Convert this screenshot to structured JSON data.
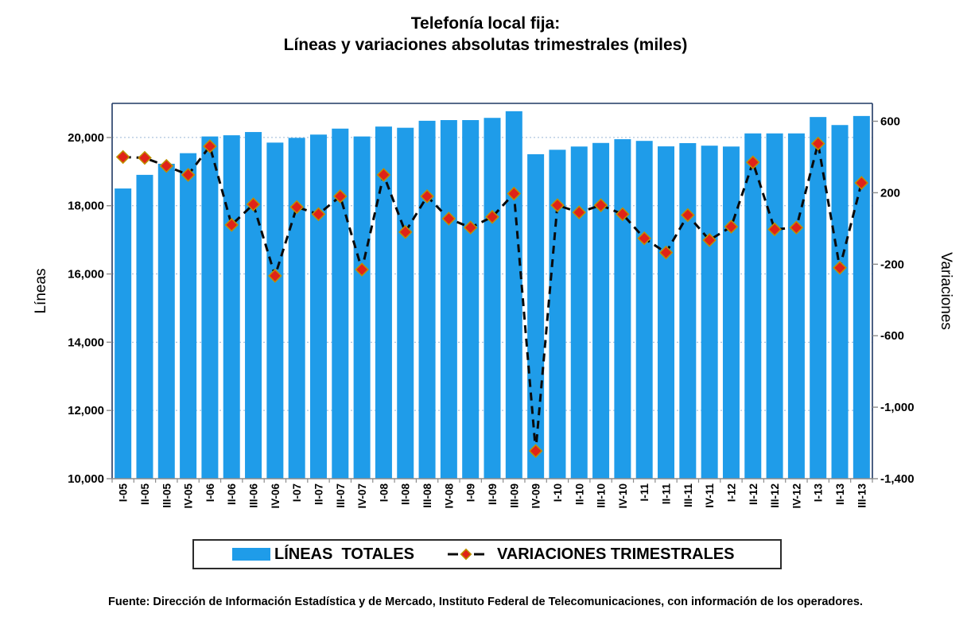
{
  "title": {
    "line1": "Telefonía local fija:",
    "line2": "Líneas y variaciones absolutas trimestrales (miles)"
  },
  "legend": {
    "series1_label": "LÍNEAS  TOTALES",
    "series2_label": "VARIACIONES TRIMESTRALES"
  },
  "source": "Fuente: Dirección de Información Estadística y de Mercado, Instituto Federal de Telecomunicaciones, con información de los operadores.",
  "colors": {
    "bar_blue": "#1F9CE9",
    "diamond_red": "#E02318",
    "diamond_outline_gold": "#BF9000",
    "dash_line_black": "#0A0A0A",
    "gridline_blue": "#9AB7D8",
    "plot_border_navy": "#1F3864",
    "axis_gray": "#8C8C8C",
    "text_black": "#000000"
  },
  "chart_data": {
    "type": "bar",
    "subtype": "bar+line-dual-axis",
    "title": "Telefonía local fija: Líneas y variaciones absolutas trimestrales (miles)",
    "categories": [
      "I-05",
      "II-05",
      "III-05",
      "IV-05",
      "I-06",
      "II-06",
      "III-06",
      "IV-06",
      "I-07",
      "II-07",
      "III-07",
      "IV-07",
      "I-08",
      "II-08",
      "III-08",
      "IV-08",
      "I-09",
      "II-09",
      "III-09",
      "IV-09",
      "I-10",
      "II-10",
      "III-10",
      "IV-10",
      "I-11",
      "II-11",
      "III-11",
      "IV-11",
      "I-12",
      "II-12",
      "III-12",
      "IV-12",
      "I-13",
      "II-13",
      "III-13"
    ],
    "series": [
      {
        "name": "LÍNEAS TOTALES",
        "type": "bar",
        "axis": "left",
        "color": "#1F9CE9",
        "values": [
          18505,
          18905,
          19230,
          19540,
          20030,
          20065,
          20160,
          19850,
          19990,
          20085,
          20260,
          20030,
          20320,
          20285,
          20490,
          20510,
          20510,
          20575,
          20770,
          19510,
          19640,
          19735,
          19840,
          19950,
          19900,
          19740,
          19835,
          19760,
          19735,
          20120,
          20120,
          20120,
          20600,
          20365,
          20630
        ]
      },
      {
        "name": "VARIACIONES TRIMESTRALES",
        "type": "line",
        "axis": "right",
        "marker": "diamond",
        "line_style": "dashed",
        "color": "#E02318",
        "line_color": "#0A0A0A",
        "values": [
          400,
          395,
          350,
          300,
          460,
          20,
          135,
          -265,
          120,
          80,
          180,
          -230,
          300,
          -20,
          180,
          55,
          5,
          65,
          195,
          -1245,
          130,
          90,
          130,
          80,
          -55,
          -135,
          75,
          -65,
          10,
          370,
          -5,
          5,
          475,
          -220,
          255
        ]
      }
    ],
    "left_axis": {
      "title": "Líneas",
      "min": 10000,
      "max": 21000,
      "major_unit": 2000,
      "tick_labels": [
        "10,000",
        "12,000",
        "14,000",
        "16,000",
        "18,000",
        "20,000"
      ]
    },
    "right_axis": {
      "title": "Variaciones",
      "min": -1400,
      "max": 700,
      "major_unit": 400,
      "tick_labels": [
        "-1,400",
        "-1,000",
        "-600",
        "-200",
        "200",
        "600"
      ]
    },
    "grid": "horizontal-dotted",
    "legend_position": "bottom"
  }
}
